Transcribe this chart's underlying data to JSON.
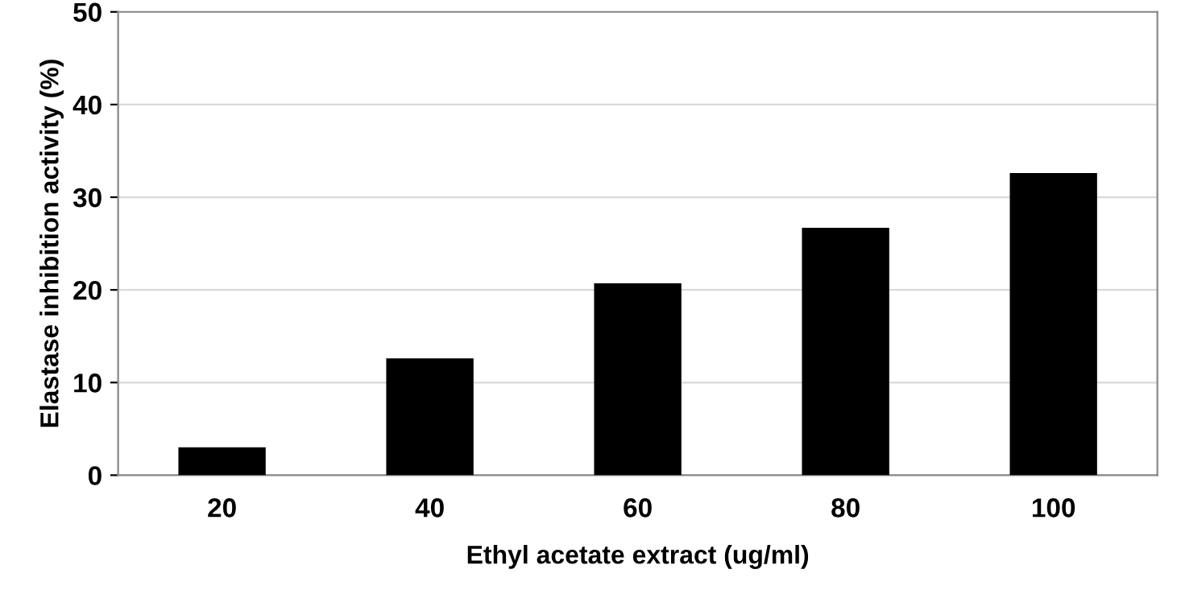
{
  "chart_data": {
    "type": "bar",
    "xlabel": "Ethyl acetate extract (ug/ml)",
    "ylabel": "Elastase inhibition activity (%)",
    "categories": [
      "20",
      "40",
      "60",
      "80",
      "100"
    ],
    "values": [
      3.0,
      12.6,
      20.7,
      26.7,
      32.6
    ],
    "color": "#000000",
    "ylim": [
      0,
      50
    ],
    "yticks": [
      0,
      10,
      20,
      30,
      40,
      50
    ],
    "grid": "y"
  }
}
